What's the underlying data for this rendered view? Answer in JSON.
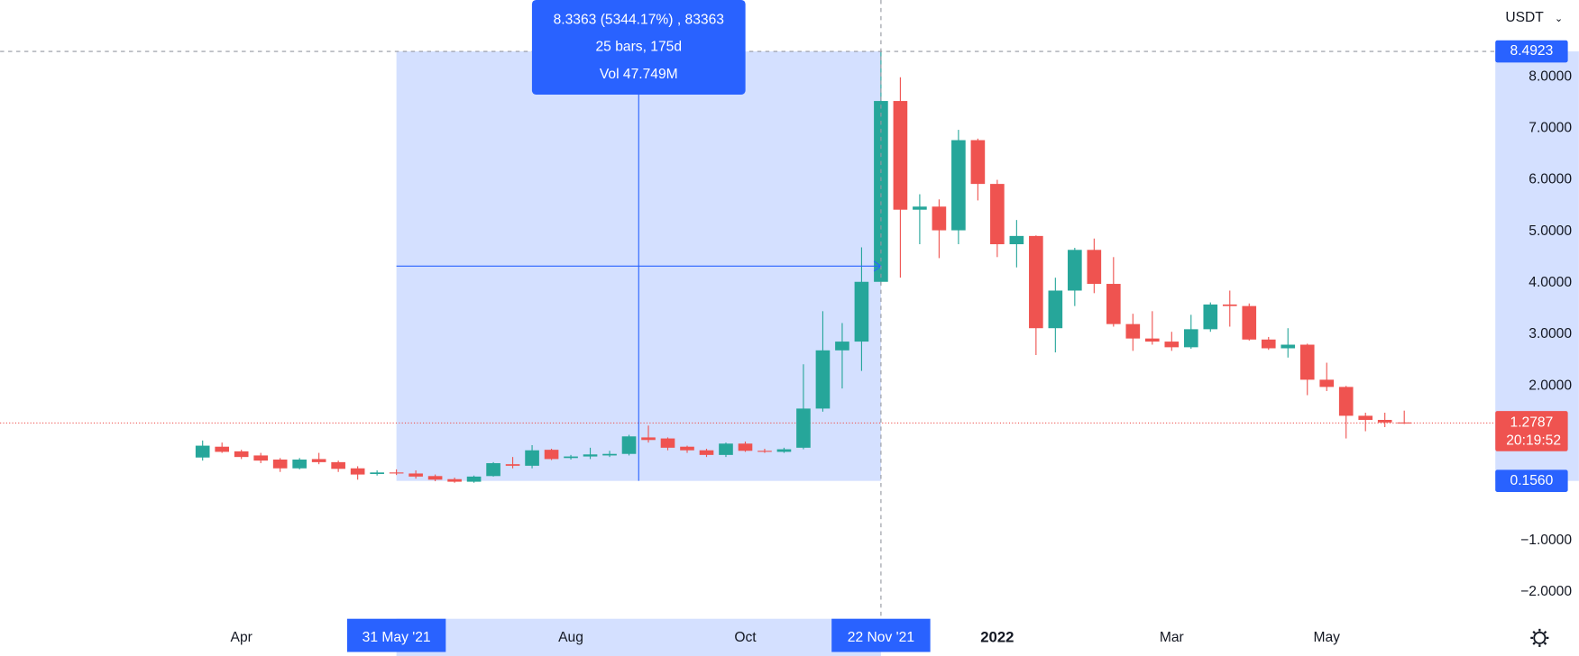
{
  "chart_data": {
    "type": "candlestick",
    "currency": "USDT",
    "up_color": "#26a69a",
    "down_color": "#ef5350",
    "candles": {
      "open": [
        0.61,
        0.82,
        0.73,
        0.65,
        0.57,
        0.4,
        0.58,
        0.52,
        0.4,
        0.29,
        0.32,
        0.3,
        0.25,
        0.19,
        0.14,
        0.25,
        0.48,
        0.45,
        0.76,
        0.6,
        0.63,
        0.65,
        0.68,
        1.0,
        0.98,
        0.82,
        0.75,
        0.66,
        0.88,
        0.74,
        0.72,
        0.8,
        1.56,
        2.69,
        2.86,
        4.02,
        7.53,
        5.42,
        5.48,
        5.02,
        6.77,
        5.92,
        4.75,
        4.91,
        3.12,
        3.85,
        4.64,
        3.98,
        3.2,
        2.92,
        2.86,
        2.75,
        3.1,
        3.58,
        3.55,
        2.9,
        2.73,
        2.8,
        2.12,
        1.98,
        1.42,
        1.34,
        1.29
      ],
      "high": [
        0.94,
        0.9,
        0.76,
        0.7,
        0.6,
        0.6,
        0.7,
        0.55,
        0.44,
        0.36,
        0.38,
        0.36,
        0.28,
        0.22,
        0.26,
        0.52,
        0.62,
        0.85,
        0.78,
        0.66,
        0.8,
        0.74,
        1.05,
        1.23,
        1.0,
        0.84,
        0.78,
        0.9,
        0.92,
        0.78,
        0.8,
        2.42,
        3.45,
        3.22,
        4.69,
        8.49,
        7.99,
        5.72,
        5.62,
        6.97,
        6.8,
        6.0,
        5.22,
        4.92,
        4.1,
        4.68,
        4.86,
        4.5,
        3.4,
        3.45,
        3.05,
        3.38,
        3.62,
        3.85,
        3.6,
        2.95,
        3.12,
        2.82,
        2.45,
        2.0,
        1.48,
        1.48,
        1.52
      ],
      "low": [
        0.55,
        0.7,
        0.58,
        0.5,
        0.33,
        0.38,
        0.48,
        0.33,
        0.18,
        0.26,
        0.27,
        0.2,
        0.15,
        0.12,
        0.12,
        0.24,
        0.4,
        0.4,
        0.56,
        0.57,
        0.58,
        0.62,
        0.65,
        0.9,
        0.75,
        0.7,
        0.62,
        0.62,
        0.72,
        0.7,
        0.7,
        0.77,
        1.5,
        1.95,
        2.29,
        3.97,
        4.1,
        4.75,
        4.48,
        4.75,
        5.6,
        4.5,
        4.3,
        2.6,
        2.65,
        3.55,
        3.8,
        3.15,
        2.68,
        2.8,
        2.68,
        2.72,
        3.05,
        3.15,
        2.88,
        2.7,
        2.55,
        1.82,
        1.9,
        0.98,
        1.12,
        1.2,
        1.26
      ],
      "close": [
        0.84,
        0.72,
        0.62,
        0.55,
        0.4,
        0.57,
        0.52,
        0.39,
        0.28,
        0.32,
        0.3,
        0.24,
        0.18,
        0.14,
        0.24,
        0.5,
        0.45,
        0.75,
        0.58,
        0.63,
        0.67,
        0.68,
        1.02,
        0.95,
        0.8,
        0.75,
        0.66,
        0.88,
        0.74,
        0.72,
        0.77,
        1.56,
        2.69,
        2.86,
        4.02,
        7.53,
        5.42,
        5.48,
        5.02,
        6.77,
        5.92,
        4.75,
        4.91,
        3.12,
        3.85,
        4.64,
        3.98,
        3.2,
        2.92,
        2.86,
        2.75,
        3.1,
        3.58,
        3.55,
        2.9,
        2.73,
        2.8,
        2.12,
        1.98,
        1.42,
        1.34,
        1.29,
        1.28
      ]
    },
    "xlim": [
      -10.45,
      66.7
    ],
    "ylim": [
      -2.52,
      9.49
    ],
    "xticks": [
      {
        "value": 2,
        "label": "Apr"
      },
      {
        "value": 10,
        "label": "31 May '21"
      },
      {
        "value": 19,
        "label": "Aug"
      },
      {
        "value": 28,
        "label": "Oct"
      },
      {
        "value": 35,
        "label": "22 Nov '21"
      },
      {
        "value": 41,
        "label": "2022"
      },
      {
        "value": 50,
        "label": "Mar"
      },
      {
        "value": 58,
        "label": "May"
      }
    ],
    "yticks": [
      {
        "value": 8,
        "label": "8.0000"
      },
      {
        "value": 7,
        "label": "7.0000"
      },
      {
        "value": 6,
        "label": "6.0000"
      },
      {
        "value": 5,
        "label": "5.0000"
      },
      {
        "value": 4,
        "label": "4.0000"
      },
      {
        "value": 3,
        "label": "3.0000"
      },
      {
        "value": 2,
        "label": "2.0000"
      },
      {
        "value": -1,
        "label": "−1.0000"
      },
      {
        "value": -2,
        "label": "−2.0000"
      }
    ],
    "measure": {
      "lines": [
        "8.3363 (5344.17%) , 83363",
        "25 bars, 175d",
        "Vol 47.749M"
      ],
      "high": {
        "value": 8.4923,
        "label": "8.4923"
      },
      "low": {
        "value": 0.156,
        "label": "0.1560"
      }
    },
    "last_price": {
      "value": 1.2787,
      "label": "1.2787"
    },
    "countdown": "20:19:52"
  }
}
